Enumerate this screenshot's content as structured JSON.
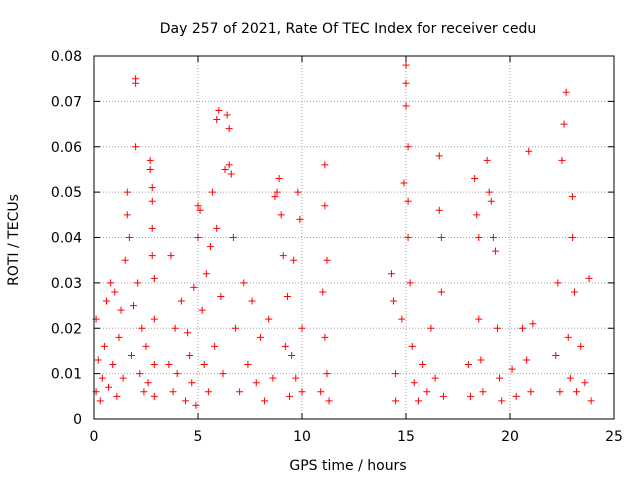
{
  "chart_data": {
    "type": "scatter",
    "title": "Day 257 of 2021, Rate Of TEC Index for receiver cedu",
    "xlabel": "GPS time / hours",
    "ylabel": "ROTI / TECUs",
    "xlim": [
      0,
      25
    ],
    "ylim": [
      0,
      0.08
    ],
    "xticks": [
      0,
      5,
      10,
      15,
      20,
      25
    ],
    "xtick_labels": [
      "0",
      "5",
      "10",
      "15",
      "20",
      "25"
    ],
    "yticks": [
      0,
      0.01,
      0.02,
      0.03,
      0.04,
      0.05,
      0.06,
      0.07,
      0.08
    ],
    "ytick_labels": [
      "0",
      "0.01",
      "0.02",
      "0.03",
      "0.04",
      "0.05",
      "0.06",
      "0.07",
      "0.08"
    ],
    "grid": true,
    "marker": "+",
    "color": "#ff0000",
    "series": [
      {
        "points": [
          [
            0.1,
            0.022
          ],
          [
            0.1,
            0.006
          ],
          [
            0.2,
            0.013
          ],
          [
            0.3,
            0.004
          ],
          [
            0.4,
            0.009
          ],
          [
            0.5,
            0.016
          ],
          [
            0.6,
            0.026
          ],
          [
            0.7,
            0.007
          ],
          [
            0.8,
            0.03
          ],
          [
            0.9,
            0.012
          ],
          [
            1.0,
            0.028
          ],
          [
            1.1,
            0.005
          ],
          [
            1.2,
            0.018
          ],
          [
            1.3,
            0.024
          ],
          [
            1.4,
            0.009
          ],
          [
            1.5,
            0.035
          ],
          [
            1.6,
            0.05
          ],
          [
            1.6,
            0.045
          ],
          [
            1.7,
            0.04
          ],
          [
            1.8,
            0.014
          ],
          [
            1.9,
            0.025
          ],
          [
            2.0,
            0.075
          ],
          [
            2.0,
            0.074
          ],
          [
            2.0,
            0.06
          ],
          [
            2.1,
            0.03
          ],
          [
            2.2,
            0.01
          ],
          [
            2.3,
            0.02
          ],
          [
            2.4,
            0.006
          ],
          [
            2.5,
            0.016
          ],
          [
            2.6,
            0.008
          ],
          [
            2.7,
            0.057
          ],
          [
            2.7,
            0.055
          ],
          [
            2.8,
            0.051
          ],
          [
            2.8,
            0.048
          ],
          [
            2.8,
            0.042
          ],
          [
            2.8,
            0.036
          ],
          [
            2.9,
            0.031
          ],
          [
            2.9,
            0.022
          ],
          [
            2.9,
            0.012
          ],
          [
            2.9,
            0.005
          ],
          [
            3.6,
            0.012
          ],
          [
            3.7,
            0.036
          ],
          [
            3.8,
            0.006
          ],
          [
            3.9,
            0.02
          ],
          [
            4.0,
            0.01
          ],
          [
            4.2,
            0.026
          ],
          [
            4.4,
            0.004
          ],
          [
            4.5,
            0.019
          ],
          [
            4.6,
            0.014
          ],
          [
            4.7,
            0.008
          ],
          [
            4.8,
            0.029
          ],
          [
            4.9,
            0.003
          ],
          [
            5.0,
            0.047
          ],
          [
            5.0,
            0.04
          ],
          [
            5.1,
            0.046
          ],
          [
            5.2,
            0.024
          ],
          [
            5.3,
            0.012
          ],
          [
            5.4,
            0.032
          ],
          [
            5.5,
            0.006
          ],
          [
            5.6,
            0.038
          ],
          [
            5.7,
            0.05
          ],
          [
            5.8,
            0.016
          ],
          [
            5.9,
            0.042
          ],
          [
            5.9,
            0.066
          ],
          [
            6.0,
            0.068
          ],
          [
            6.1,
            0.027
          ],
          [
            6.2,
            0.01
          ],
          [
            6.3,
            0.055
          ],
          [
            6.4,
            0.067
          ],
          [
            6.5,
            0.064
          ],
          [
            6.5,
            0.056
          ],
          [
            6.6,
            0.054
          ],
          [
            6.7,
            0.04
          ],
          [
            6.8,
            0.02
          ],
          [
            7.0,
            0.006
          ],
          [
            7.2,
            0.03
          ],
          [
            7.4,
            0.012
          ],
          [
            7.6,
            0.026
          ],
          [
            7.8,
            0.008
          ],
          [
            8.0,
            0.018
          ],
          [
            8.2,
            0.004
          ],
          [
            8.4,
            0.022
          ],
          [
            8.6,
            0.009
          ],
          [
            8.7,
            0.049
          ],
          [
            8.8,
            0.05
          ],
          [
            8.9,
            0.053
          ],
          [
            9.0,
            0.045
          ],
          [
            9.1,
            0.036
          ],
          [
            9.2,
            0.016
          ],
          [
            9.3,
            0.027
          ],
          [
            9.4,
            0.005
          ],
          [
            9.5,
            0.014
          ],
          [
            9.6,
            0.035
          ],
          [
            9.7,
            0.009
          ],
          [
            9.8,
            0.05
          ],
          [
            9.9,
            0.044
          ],
          [
            10.0,
            0.02
          ],
          [
            10.0,
            0.006
          ],
          [
            10.9,
            0.006
          ],
          [
            11.0,
            0.028
          ],
          [
            11.1,
            0.018
          ],
          [
            11.1,
            0.056
          ],
          [
            11.1,
            0.047
          ],
          [
            11.2,
            0.035
          ],
          [
            11.2,
            0.01
          ],
          [
            11.3,
            0.004
          ],
          [
            14.3,
            0.032
          ],
          [
            14.4,
            0.026
          ],
          [
            14.5,
            0.01
          ],
          [
            14.5,
            0.004
          ],
          [
            14.8,
            0.022
          ],
          [
            14.9,
            0.052
          ],
          [
            15.0,
            0.078
          ],
          [
            15.0,
            0.074
          ],
          [
            15.0,
            0.069
          ],
          [
            15.1,
            0.06
          ],
          [
            15.1,
            0.048
          ],
          [
            15.1,
            0.04
          ],
          [
            15.2,
            0.03
          ],
          [
            15.3,
            0.016
          ],
          [
            15.4,
            0.008
          ],
          [
            15.6,
            0.004
          ],
          [
            15.8,
            0.012
          ],
          [
            16.0,
            0.006
          ],
          [
            16.2,
            0.02
          ],
          [
            16.4,
            0.009
          ],
          [
            16.6,
            0.058
          ],
          [
            16.6,
            0.046
          ],
          [
            16.7,
            0.04
          ],
          [
            16.7,
            0.028
          ],
          [
            16.8,
            0.005
          ],
          [
            18.0,
            0.012
          ],
          [
            18.1,
            0.005
          ],
          [
            18.3,
            0.053
          ],
          [
            18.4,
            0.045
          ],
          [
            18.5,
            0.04
          ],
          [
            18.5,
            0.022
          ],
          [
            18.6,
            0.013
          ],
          [
            18.7,
            0.006
          ],
          [
            18.9,
            0.057
          ],
          [
            19.0,
            0.05
          ],
          [
            19.1,
            0.048
          ],
          [
            19.2,
            0.04
          ],
          [
            19.3,
            0.037
          ],
          [
            19.4,
            0.02
          ],
          [
            19.5,
            0.009
          ],
          [
            19.6,
            0.004
          ],
          [
            20.1,
            0.011
          ],
          [
            20.3,
            0.005
          ],
          [
            20.6,
            0.02
          ],
          [
            20.8,
            0.013
          ],
          [
            20.9,
            0.059
          ],
          [
            21.0,
            0.006
          ],
          [
            21.1,
            0.021
          ],
          [
            22.2,
            0.014
          ],
          [
            22.3,
            0.03
          ],
          [
            22.4,
            0.006
          ],
          [
            22.5,
            0.057
          ],
          [
            22.6,
            0.065
          ],
          [
            22.7,
            0.072
          ],
          [
            22.8,
            0.018
          ],
          [
            22.9,
            0.009
          ],
          [
            23.0,
            0.049
          ],
          [
            23.0,
            0.04
          ],
          [
            23.1,
            0.028
          ],
          [
            23.2,
            0.006
          ],
          [
            23.4,
            0.016
          ],
          [
            23.6,
            0.008
          ],
          [
            23.8,
            0.031
          ],
          [
            23.9,
            0.004
          ]
        ]
      }
    ]
  }
}
